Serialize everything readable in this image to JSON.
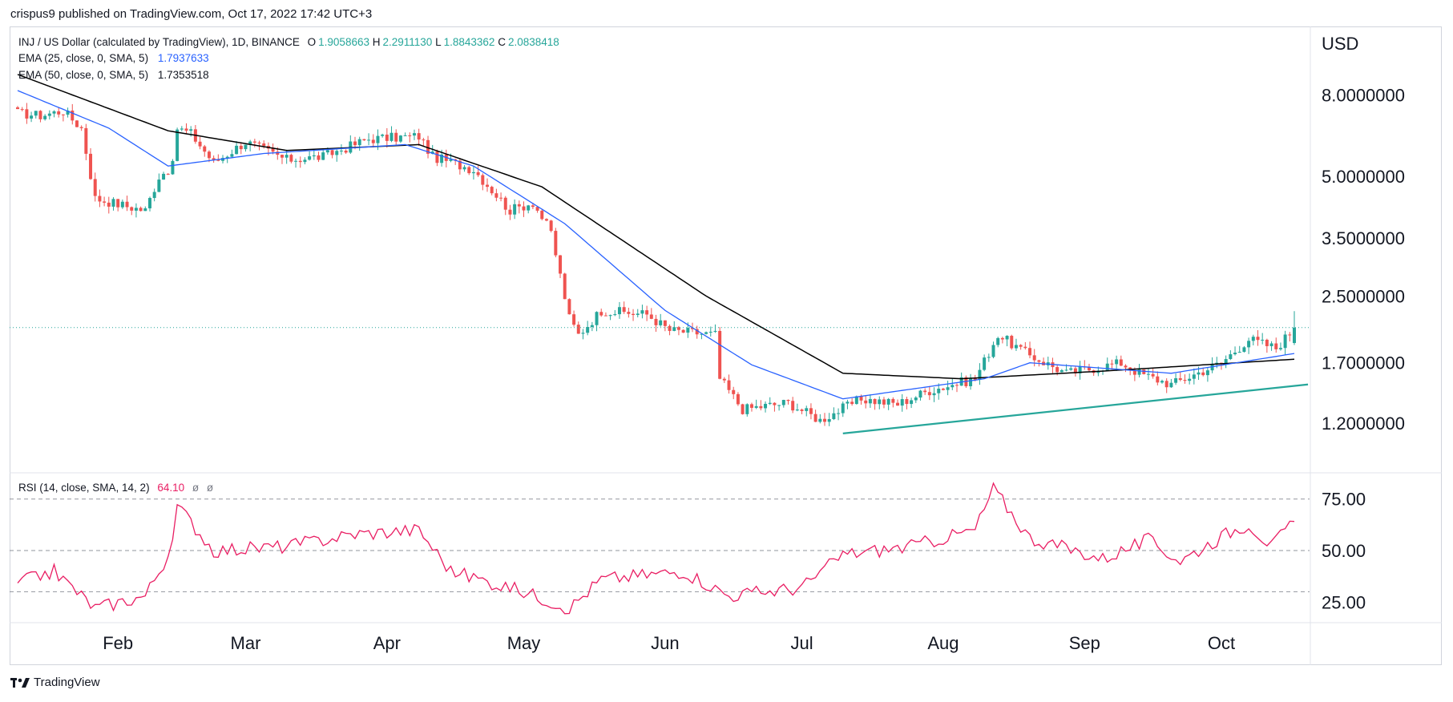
{
  "header": {
    "published": "crispus9 published on TradingView.com, Oct 17, 2022 17:42 UTC+3"
  },
  "legend": {
    "symbol": "INJ / US Dollar (calculated by TradingView), 1D, BINANCE",
    "o_label": "O",
    "o": "1.9058663",
    "h_label": "H",
    "h": "2.2911130",
    "l_label": "L",
    "l": "1.8843362",
    "c_label": "C",
    "c": "2.0838418",
    "ema25_label": "EMA (25, close, 0, SMA, 5)",
    "ema25_value": "1.7937633",
    "ema50_label": "EMA (50, close, 0, SMA, 5)",
    "ema50_value": "1.7353518",
    "rsi_label": "RSI (14, close, SMA, 14, 2)",
    "rsi_value": "64.10",
    "rsi_extra1": "ø",
    "rsi_extra2": "ø"
  },
  "price_axis": {
    "title": "USD",
    "ticks": [
      "8.0000000",
      "5.0000000",
      "3.5000000",
      "2.5000000",
      "1.7000000",
      "1.2000000"
    ]
  },
  "rsi_axis": {
    "ticks": [
      "75.00",
      "50.00",
      "25.00"
    ]
  },
  "time_axis": {
    "ticks": [
      "Feb",
      "Mar",
      "Apr",
      "May",
      "Jun",
      "Jul",
      "Aug",
      "Sep",
      "Oct"
    ]
  },
  "brand": {
    "name": "TradingView"
  },
  "colors": {
    "up": "#26a69a",
    "down": "#ef5350",
    "ema25": "#2962ff",
    "ema50": "#000000",
    "rsi": "#e91e63",
    "trendline": "#26a69a"
  },
  "chart_data": [
    {
      "type": "candlestick",
      "title": "INJ / US Dollar (calculated by TradingView), 1D, BINANCE",
      "yscale": "log",
      "ylim": [
        0.9,
        11.5
      ],
      "x_start": "2022-01-10",
      "x_end": "2022-10-17",
      "ohlc_anchors": [
        {
          "date": "2022-01-10",
          "close": 7.2
        },
        {
          "date": "2022-01-15",
          "close": 7.1
        },
        {
          "date": "2022-01-20",
          "close": 7.3
        },
        {
          "date": "2022-01-24",
          "close": 6.6
        },
        {
          "date": "2022-01-27",
          "close": 4.4
        },
        {
          "date": "2022-02-03",
          "close": 4.2
        },
        {
          "date": "2022-02-07",
          "close": 4.1
        },
        {
          "date": "2022-02-10",
          "close": 5.0
        },
        {
          "date": "2022-02-13",
          "close": 5.3
        },
        {
          "date": "2022-02-14",
          "close": 6.6
        },
        {
          "date": "2022-02-17",
          "close": 6.4
        },
        {
          "date": "2022-02-22",
          "close": 5.4
        },
        {
          "date": "2022-03-01",
          "close": 6.1
        },
        {
          "date": "2022-03-10",
          "close": 5.5
        },
        {
          "date": "2022-03-18",
          "close": 5.6
        },
        {
          "date": "2022-03-28",
          "close": 6.2
        },
        {
          "date": "2022-04-08",
          "close": 6.3
        },
        {
          "date": "2022-04-11",
          "close": 5.6
        },
        {
          "date": "2022-04-20",
          "close": 5.2
        },
        {
          "date": "2022-04-28",
          "close": 4.1
        },
        {
          "date": "2022-05-03",
          "close": 4.3
        },
        {
          "date": "2022-05-07",
          "close": 3.6
        },
        {
          "date": "2022-05-11",
          "close": 2.2
        },
        {
          "date": "2022-05-13",
          "close": 2.0
        },
        {
          "date": "2022-05-18",
          "close": 2.3
        },
        {
          "date": "2022-05-28",
          "close": 2.25
        },
        {
          "date": "2022-06-02",
          "close": 2.05
        },
        {
          "date": "2022-06-12",
          "close": 2.0
        },
        {
          "date": "2022-06-13",
          "close": 1.55
        },
        {
          "date": "2022-06-18",
          "close": 1.3
        },
        {
          "date": "2022-06-28",
          "close": 1.35
        },
        {
          "date": "2022-07-05",
          "close": 1.22
        },
        {
          "date": "2022-07-14",
          "close": 1.38
        },
        {
          "date": "2022-07-22",
          "close": 1.34
        },
        {
          "date": "2022-07-29",
          "close": 1.45
        },
        {
          "date": "2022-08-08",
          "close": 1.55
        },
        {
          "date": "2022-08-13",
          "close": 2.0
        },
        {
          "date": "2022-08-19",
          "close": 1.8
        },
        {
          "date": "2022-08-28",
          "close": 1.6
        },
        {
          "date": "2022-09-09",
          "close": 1.7
        },
        {
          "date": "2022-09-13",
          "close": 1.6
        },
        {
          "date": "2022-09-20",
          "close": 1.5
        },
        {
          "date": "2022-10-01",
          "close": 1.7
        },
        {
          "date": "2022-10-07",
          "close": 1.95
        },
        {
          "date": "2022-10-13",
          "close": 1.85
        },
        {
          "date": "2022-10-17",
          "close": 2.08
        }
      ],
      "last": {
        "open": 1.9058663,
        "high": 2.291113,
        "low": 1.8843362,
        "close": 2.0838418
      },
      "ema25": [
        {
          "date": "2022-01-10",
          "value": 8.2
        },
        {
          "date": "2022-01-30",
          "value": 6.6
        },
        {
          "date": "2022-02-12",
          "value": 5.3
        },
        {
          "date": "2022-03-05",
          "value": 5.7
        },
        {
          "date": "2022-04-05",
          "value": 6.0
        },
        {
          "date": "2022-04-20",
          "value": 5.3
        },
        {
          "date": "2022-05-10",
          "value": 3.8
        },
        {
          "date": "2022-06-01",
          "value": 2.3
        },
        {
          "date": "2022-06-20",
          "value": 1.68
        },
        {
          "date": "2022-07-10",
          "value": 1.38
        },
        {
          "date": "2022-08-10",
          "value": 1.55
        },
        {
          "date": "2022-08-20",
          "value": 1.7
        },
        {
          "date": "2022-09-20",
          "value": 1.6
        },
        {
          "date": "2022-10-17",
          "value": 1.7937633
        }
      ],
      "ema50": [
        {
          "date": "2022-01-10",
          "value": 9.0
        },
        {
          "date": "2022-02-12",
          "value": 6.5
        },
        {
          "date": "2022-03-10",
          "value": 5.8
        },
        {
          "date": "2022-04-08",
          "value": 6.0
        },
        {
          "date": "2022-05-05",
          "value": 4.7
        },
        {
          "date": "2022-06-10",
          "value": 2.5
        },
        {
          "date": "2022-07-10",
          "value": 1.6
        },
        {
          "date": "2022-08-05",
          "value": 1.55
        },
        {
          "date": "2022-09-05",
          "value": 1.62
        },
        {
          "date": "2022-10-17",
          "value": 1.7353518
        }
      ],
      "trendline": [
        {
          "date": "2022-07-10",
          "value": 1.13
        },
        {
          "date": "2022-10-20",
          "value": 1.5
        }
      ]
    },
    {
      "type": "line",
      "title": "RSI (14, close, SMA, 14, 2)",
      "ylim": [
        15,
        85
      ],
      "bands": [
        75,
        50,
        30
      ],
      "rsi": [
        {
          "date": "2022-01-10",
          "value": 34
        },
        {
          "date": "2022-01-18",
          "value": 40
        },
        {
          "date": "2022-01-27",
          "value": 22
        },
        {
          "date": "2022-02-07",
          "value": 28
        },
        {
          "date": "2022-02-13",
          "value": 52
        },
        {
          "date": "2022-02-14",
          "value": 72
        },
        {
          "date": "2022-02-22",
          "value": 50
        },
        {
          "date": "2022-03-10",
          "value": 52
        },
        {
          "date": "2022-03-25",
          "value": 58
        },
        {
          "date": "2022-04-08",
          "value": 60
        },
        {
          "date": "2022-04-15",
          "value": 40
        },
        {
          "date": "2022-05-01",
          "value": 30
        },
        {
          "date": "2022-05-11",
          "value": 22
        },
        {
          "date": "2022-05-18",
          "value": 36
        },
        {
          "date": "2022-06-05",
          "value": 40
        },
        {
          "date": "2022-06-15",
          "value": 28
        },
        {
          "date": "2022-07-01",
          "value": 32
        },
        {
          "date": "2022-07-10",
          "value": 48
        },
        {
          "date": "2022-07-25",
          "value": 52
        },
        {
          "date": "2022-08-08",
          "value": 60
        },
        {
          "date": "2022-08-12",
          "value": 80
        },
        {
          "date": "2022-08-20",
          "value": 56
        },
        {
          "date": "2022-09-05",
          "value": 46
        },
        {
          "date": "2022-09-15",
          "value": 55
        },
        {
          "date": "2022-09-22",
          "value": 45
        },
        {
          "date": "2022-10-02",
          "value": 58
        },
        {
          "date": "2022-10-07",
          "value": 63
        },
        {
          "date": "2022-10-12",
          "value": 52
        },
        {
          "date": "2022-10-17",
          "value": 64.1
        }
      ]
    }
  ]
}
